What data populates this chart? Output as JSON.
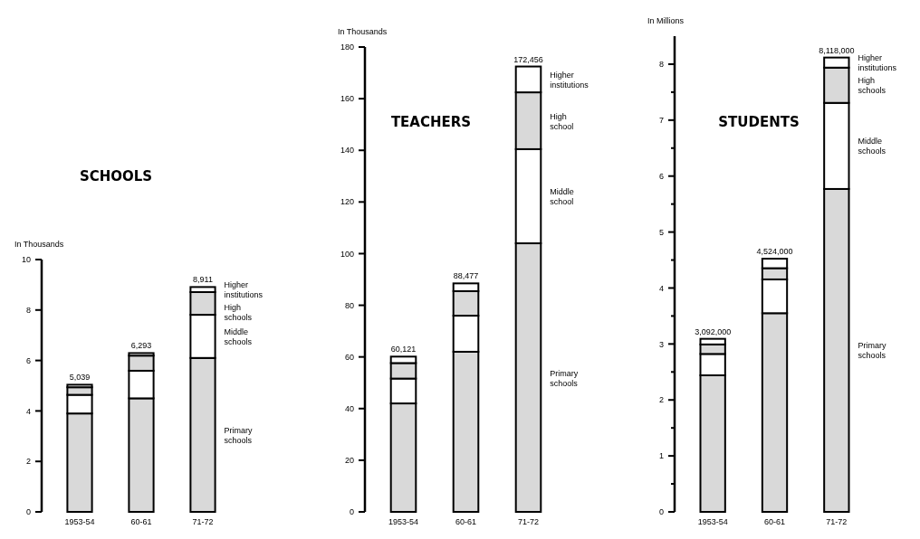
{
  "chart_data": [
    {
      "type": "bar",
      "stacked": true,
      "title": "SCHOOLS",
      "ylabel": "In Thousands",
      "categories": [
        "1953-54",
        "60-61",
        "71-72"
      ],
      "ylim": [
        0,
        10
      ],
      "yticks": [
        0,
        2,
        4,
        6,
        8,
        10
      ],
      "series": [
        {
          "name": "Primary schools",
          "color": "#d9d9d9",
          "values": [
            3.9,
            4.5,
            6.1
          ]
        },
        {
          "name": "Middle schools",
          "color": "#ffffff",
          "values": [
            0.739,
            1.093,
            1.711
          ]
        },
        {
          "name": "High schools",
          "color": "#d9d9d9",
          "values": [
            0.3,
            0.6,
            0.9
          ]
        },
        {
          "name": "Higher institutions",
          "color": "#ffffff",
          "values": [
            0.1,
            0.1,
            0.2
          ]
        }
      ],
      "totals": [
        "5,039",
        "6,293",
        "8,911"
      ]
    },
    {
      "type": "bar",
      "stacked": true,
      "title": "TEACHERS",
      "ylabel": "In Thousands",
      "categories": [
        "1953-54",
        "60-61",
        "71-72"
      ],
      "ylim": [
        0,
        180
      ],
      "yticks": [
        0,
        20,
        40,
        60,
        80,
        100,
        120,
        140,
        160,
        180
      ],
      "series": [
        {
          "name": "Primary schools",
          "color": "#d9d9d9",
          "values": [
            42,
            62,
            104
          ]
        },
        {
          "name": "Middle school",
          "color": "#ffffff",
          "values": [
            9.621,
            13.977,
            36.456
          ]
        },
        {
          "name": "High school",
          "color": "#d9d9d9",
          "values": [
            6,
            9.5,
            22
          ]
        },
        {
          "name": "Higher institutions",
          "color": "#ffffff",
          "values": [
            2.5,
            3,
            10
          ]
        }
      ],
      "totals": [
        "60,121",
        "88,477",
        "172,456"
      ]
    },
    {
      "type": "bar",
      "stacked": true,
      "title": "STUDENTS",
      "ylabel": "In Millions",
      "categories": [
        "1953-54",
        "60-61",
        "71-72"
      ],
      "ylim": [
        0,
        8.5
      ],
      "yticks": [
        0,
        {
          "value": 0.5,
          "label": null
        },
        1,
        {
          "value": 1.5,
          "label": null
        },
        2,
        {
          "value": 2.5,
          "label": null
        },
        3,
        {
          "value": 3.5,
          "label": null
        },
        4,
        {
          "value": 4.5,
          "label": null
        },
        5,
        {
          "value": 5.5,
          "label": null
        },
        6,
        {
          "value": 6.5,
          "label": null
        },
        7,
        {
          "value": 7.5,
          "label": null
        },
        8
      ],
      "series": [
        {
          "name": "Primary schools",
          "color": "#d9d9d9",
          "values": [
            2.44,
            3.55,
            5.77
          ]
        },
        {
          "name": "Middle schools",
          "color": "#ffffff",
          "values": [
            0.382,
            0.604,
            1.538
          ]
        },
        {
          "name": "High schools",
          "color": "#d9d9d9",
          "values": [
            0.17,
            0.2,
            0.63
          ]
        },
        {
          "name": "Higher institutions",
          "color": "#ffffff",
          "values": [
            0.1,
            0.17,
            0.18
          ]
        }
      ],
      "totals": [
        "3,092,000",
        "4,524,000",
        "8,118,000"
      ]
    }
  ]
}
